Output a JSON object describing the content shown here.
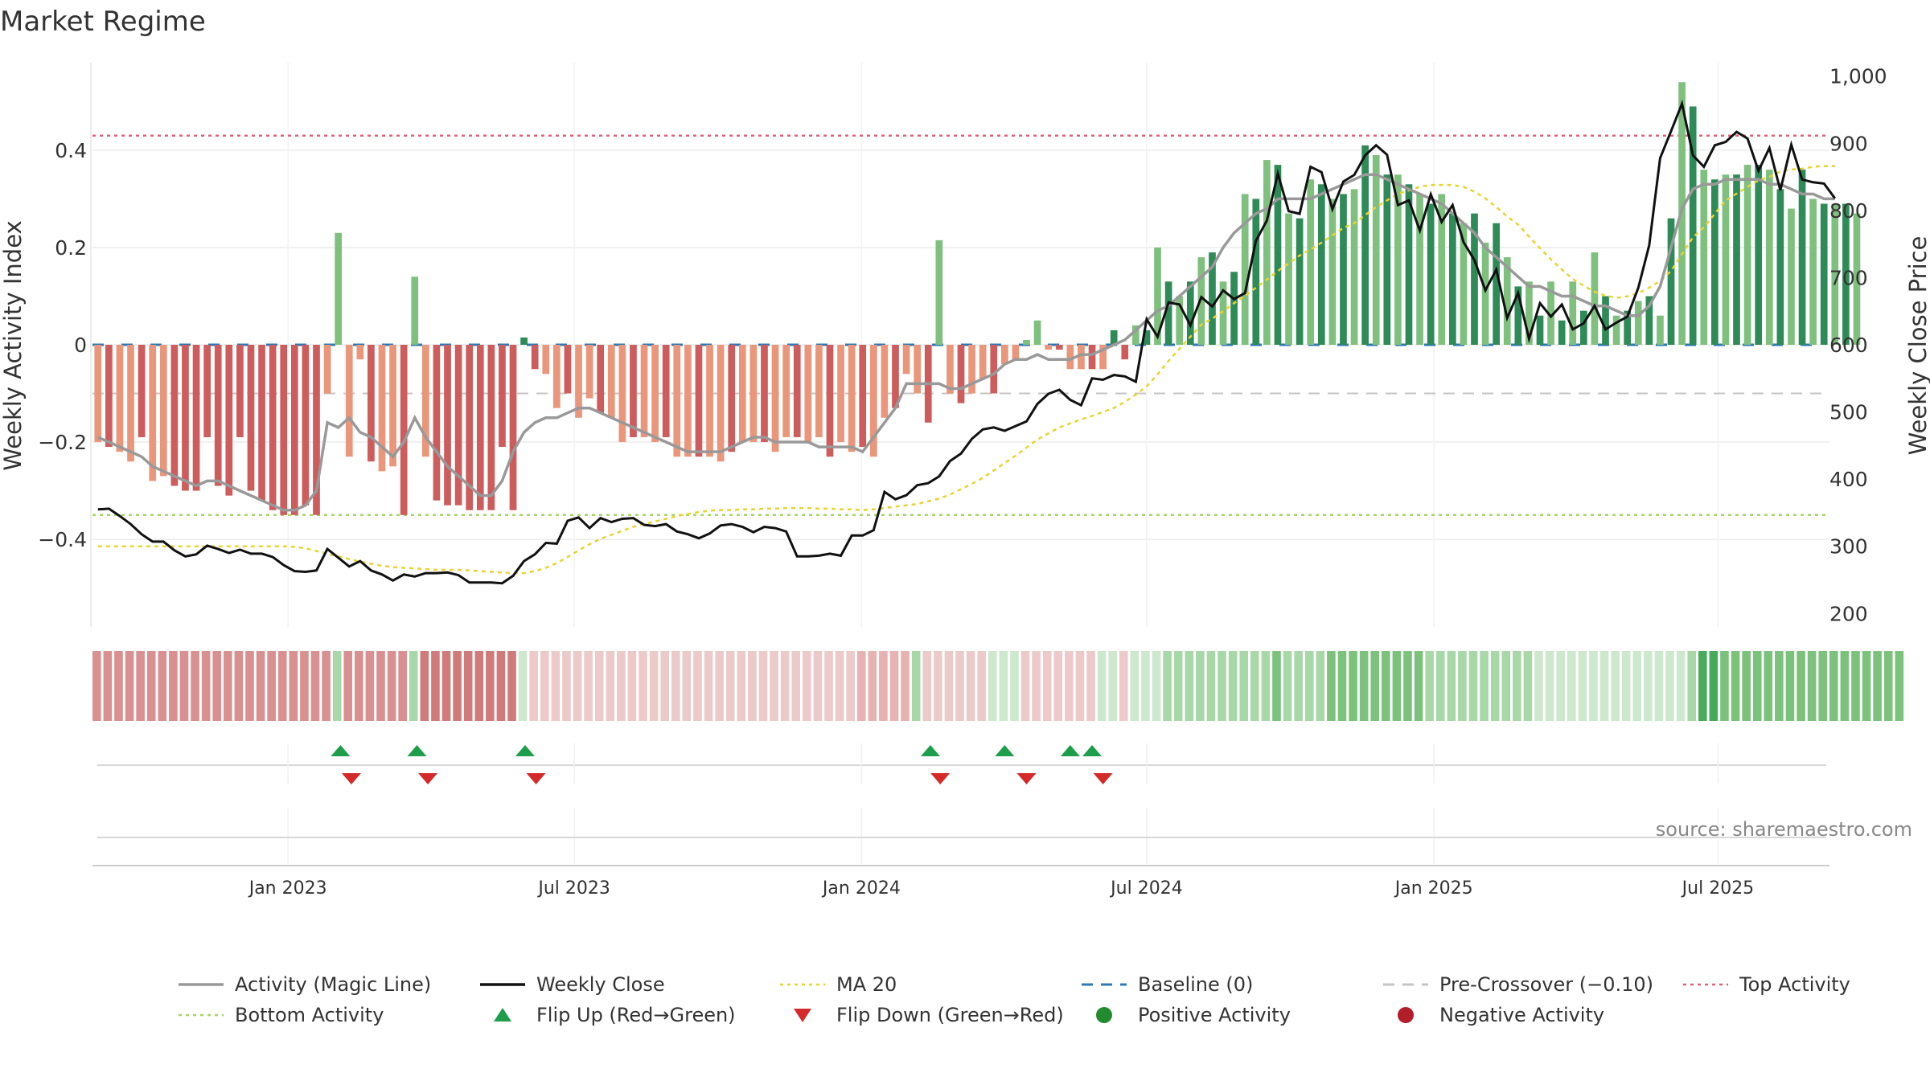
{
  "chart_data": {
    "type": "bar",
    "title": "Market Regime",
    "ylabel": "Weekly Activity Index",
    "y2label": "Weekly Close Price",
    "source": "source: sharemaestro.com",
    "ylim": [
      -0.58,
      0.58
    ],
    "y2lim": [
      180,
      1020
    ],
    "yticks": [
      "0.4",
      "0.2",
      "0",
      "−0.2",
      "−0.4"
    ],
    "yticks_values": [
      0.4,
      0.2,
      0,
      -0.2,
      -0.4
    ],
    "y2ticks": [
      "1,000",
      "900",
      "800",
      "700",
      "600",
      "500",
      "400",
      "300",
      "200"
    ],
    "y2ticks_values": [
      1000,
      900,
      800,
      700,
      600,
      500,
      400,
      300,
      200
    ],
    "xticks": [
      "Jan 2023",
      "Jul 2023",
      "Jan 2024",
      "Jul 2024",
      "Jan 2025",
      "Jul 2025"
    ],
    "xticks_week": [
      17.4,
      43.6,
      69.9,
      96.0,
      122.3,
      148.3
    ],
    "n_weeks": 159,
    "reference_lines": {
      "top_activity": 0.43,
      "bottom_activity": -0.35,
      "pre_crossover": -0.1,
      "baseline": 0
    },
    "activity": [
      -0.2,
      -0.21,
      -0.22,
      -0.24,
      -0.19,
      -0.28,
      -0.27,
      -0.29,
      -0.3,
      -0.3,
      -0.19,
      -0.29,
      -0.31,
      -0.19,
      -0.3,
      -0.32,
      -0.34,
      -0.35,
      -0.35,
      -0.33,
      -0.35,
      -0.1,
      0.23,
      -0.23,
      -0.03,
      -0.24,
      -0.26,
      -0.25,
      -0.35,
      0.14,
      -0.23,
      -0.32,
      -0.33,
      -0.33,
      -0.34,
      -0.34,
      -0.34,
      -0.21,
      -0.34,
      0.015,
      -0.05,
      -0.06,
      -0.13,
      -0.1,
      -0.15,
      -0.11,
      -0.14,
      -0.15,
      -0.2,
      -0.19,
      -0.19,
      -0.2,
      -0.19,
      -0.23,
      -0.23,
      -0.23,
      -0.23,
      -0.24,
      -0.22,
      -0.2,
      -0.2,
      -0.2,
      -0.22,
      -0.19,
      -0.19,
      -0.2,
      -0.19,
      -0.23,
      -0.2,
      -0.22,
      -0.21,
      -0.23,
      -0.15,
      -0.13,
      -0.06,
      -0.1,
      -0.16,
      0.215,
      -0.1,
      -0.12,
      -0.1,
      -0.07,
      -0.1,
      -0.04,
      -0.03,
      0.01,
      0.05,
      -0.01,
      -0.01,
      -0.05,
      -0.05,
      -0.05,
      -0.05,
      0.03,
      -0.03,
      0.04,
      0.03,
      0.2,
      0.13,
      0.1,
      0.13,
      0.18,
      0.19,
      0.13,
      0.15,
      0.31,
      0.3,
      0.38,
      0.37,
      0.27,
      0.26,
      0.34,
      0.33,
      0.3,
      0.31,
      0.32,
      0.41,
      0.39,
      0.35,
      0.35,
      0.33,
      0.31,
      0.29,
      0.31,
      0.27,
      0.25,
      0.27,
      0.21,
      0.25,
      0.18,
      0.12,
      0.13,
      0.06,
      0.13,
      0.05,
      0.13,
      0.07,
      0.19,
      0.1,
      0.06,
      0.07,
      0.09,
      0.1,
      0.06,
      0.26,
      0.54,
      0.49,
      0.36,
      0.34,
      0.35,
      0.35,
      0.37,
      0.37,
      0.36,
      0.32,
      0.28,
      0.36,
      0.3,
      0.29,
      0.29,
      0.29,
      0.27
    ],
    "magic_line": [
      -0.19,
      -0.2,
      -0.21,
      -0.22,
      -0.23,
      -0.25,
      -0.26,
      -0.27,
      -0.28,
      -0.29,
      -0.28,
      -0.28,
      -0.29,
      -0.3,
      -0.31,
      -0.32,
      -0.33,
      -0.34,
      -0.34,
      -0.33,
      -0.3,
      -0.16,
      -0.17,
      -0.15,
      -0.18,
      -0.19,
      -0.21,
      -0.23,
      -0.2,
      -0.15,
      -0.19,
      -0.22,
      -0.25,
      -0.27,
      -0.29,
      -0.31,
      -0.31,
      -0.28,
      -0.22,
      -0.18,
      -0.16,
      -0.15,
      -0.15,
      -0.14,
      -0.13,
      -0.13,
      -0.14,
      -0.15,
      -0.16,
      -0.17,
      -0.18,
      -0.19,
      -0.2,
      -0.21,
      -0.22,
      -0.22,
      -0.22,
      -0.22,
      -0.21,
      -0.2,
      -0.19,
      -0.19,
      -0.2,
      -0.2,
      -0.2,
      -0.2,
      -0.21,
      -0.21,
      -0.21,
      -0.21,
      -0.22,
      -0.19,
      -0.16,
      -0.13,
      -0.08,
      -0.08,
      -0.08,
      -0.08,
      -0.09,
      -0.09,
      -0.08,
      -0.07,
      -0.06,
      -0.04,
      -0.03,
      -0.03,
      -0.02,
      -0.03,
      -0.03,
      -0.03,
      -0.02,
      -0.02,
      -0.01,
      0.0,
      0.01,
      0.03,
      0.05,
      0.07,
      0.08,
      0.1,
      0.12,
      0.14,
      0.16,
      0.2,
      0.23,
      0.25,
      0.27,
      0.28,
      0.3,
      0.3,
      0.3,
      0.3,
      0.31,
      0.32,
      0.33,
      0.34,
      0.35,
      0.35,
      0.34,
      0.33,
      0.32,
      0.31,
      0.3,
      0.29,
      0.27,
      0.25,
      0.23,
      0.2,
      0.18,
      0.16,
      0.14,
      0.12,
      0.12,
      0.11,
      0.1,
      0.1,
      0.09,
      0.08,
      0.08,
      0.07,
      0.06,
      0.06,
      0.08,
      0.12,
      0.2,
      0.28,
      0.32,
      0.33,
      0.33,
      0.34,
      0.34,
      0.34,
      0.34,
      0.33,
      0.33,
      0.32,
      0.31,
      0.31,
      0.3,
      0.3
    ],
    "weekly_close": [
      355,
      356,
      345,
      333,
      318,
      307,
      307,
      294,
      285,
      288,
      301,
      296,
      290,
      295,
      289,
      289,
      284,
      272,
      263,
      262,
      264,
      296,
      283,
      270,
      278,
      264,
      258,
      249,
      258,
      255,
      260,
      260,
      261,
      257,
      246,
      246,
      246,
      245,
      256,
      278,
      288,
      305,
      304,
      338,
      343,
      327,
      342,
      336,
      341,
      342,
      332,
      330,
      333,
      322,
      318,
      312,
      319,
      331,
      333,
      329,
      321,
      329,
      327,
      322,
      285,
      285,
      286,
      289,
      286,
      316,
      316,
      324,
      381,
      370,
      376,
      391,
      394,
      404,
      427,
      438,
      460,
      474,
      477,
      472,
      479,
      486,
      512,
      527,
      533,
      518,
      510,
      550,
      548,
      555,
      553,
      545,
      638,
      612,
      663,
      660,
      629,
      671,
      657,
      681,
      668,
      677,
      755,
      785,
      855,
      799,
      795,
      865,
      857,
      802,
      843,
      853,
      882,
      897,
      883,
      808,
      815,
      770,
      824,
      783,
      808,
      753,
      726,
      681,
      712,
      640,
      677,
      609,
      662,
      642,
      660,
      623,
      632,
      658,
      623,
      633,
      642,
      685,
      748,
      878,
      918,
      959,
      882,
      865,
      897,
      902,
      917,
      907,
      859,
      893,
      830,
      898,
      846,
      842,
      840,
      818
    ],
    "ma20": [
      300,
      300,
      300,
      300,
      300,
      300,
      300,
      300,
      300,
      300,
      300,
      300,
      300,
      300,
      300,
      300,
      300,
      300,
      299,
      297,
      293,
      289,
      285,
      281,
      277,
      274,
      271,
      269,
      268,
      267,
      266,
      265,
      265,
      265,
      264,
      263,
      262,
      261,
      260,
      260,
      263,
      268,
      275,
      284,
      294,
      303,
      311,
      317,
      323,
      329,
      333,
      337,
      341,
      345,
      348,
      351,
      353,
      354,
      354,
      355,
      355,
      356,
      356,
      357,
      357,
      357,
      356,
      356,
      355,
      355,
      354,
      355,
      357,
      359,
      361,
      363,
      367,
      371,
      377,
      385,
      393,
      402,
      413,
      424,
      435,
      447,
      459,
      468,
      477,
      483,
      489,
      494,
      500,
      506,
      515,
      526,
      538,
      556,
      576,
      594,
      612,
      630,
      639,
      650,
      662,
      673,
      685,
      697,
      710,
      721,
      733,
      742,
      752,
      763,
      774,
      781,
      793,
      805,
      815,
      825,
      830,
      835,
      838,
      838,
      838,
      835,
      828,
      818,
      805,
      791,
      779,
      761,
      744,
      727,
      712,
      698,
      688,
      679,
      673,
      670,
      672,
      677,
      685,
      695,
      710,
      735,
      760,
      775,
      795,
      815,
      825,
      835,
      845,
      850,
      858,
      861,
      862,
      865,
      866,
      866
    ],
    "ribbon_levels": [
      -3,
      -3,
      -3,
      -3,
      -3,
      -3,
      -3,
      -3,
      -3,
      -3,
      -3,
      -3,
      -3,
      -3,
      -3,
      -3,
      -3,
      -3,
      -3,
      -3,
      -3,
      -3,
      2,
      -3,
      -3,
      -3,
      -3,
      -3,
      -3,
      2,
      -4,
      -4,
      -4,
      -4,
      -4,
      -4,
      -4,
      -4,
      -4,
      1,
      -1,
      -1,
      -1,
      -1,
      -1,
      -1,
      -1,
      -1,
      -1,
      -1,
      -1,
      -1,
      -1,
      -1,
      -1,
      -1,
      -1,
      -1,
      -1,
      -1,
      -1,
      -1,
      -1,
      -1,
      -1,
      -1,
      -1,
      -1,
      -1,
      -1,
      -2,
      -2,
      -2,
      -2,
      -2,
      2,
      -1,
      -1,
      -1,
      -1,
      -1,
      -1,
      1,
      1,
      1,
      -1,
      -1,
      -1,
      -1,
      -1,
      -1,
      -1,
      1,
      1,
      -1,
      1,
      1,
      1,
      2,
      2,
      2,
      2,
      2,
      2,
      2,
      2,
      2,
      2,
      3,
      2,
      2,
      2,
      2,
      3,
      3,
      3,
      3,
      3,
      3,
      3,
      3,
      3,
      2,
      2,
      2,
      2,
      2,
      2,
      2,
      2,
      2,
      2,
      1,
      1,
      1,
      1,
      1,
      1,
      1,
      1,
      1,
      1,
      1,
      1,
      1,
      1,
      2,
      4,
      4,
      3,
      3,
      3,
      3,
      3,
      3,
      3,
      3,
      3,
      3,
      3,
      3,
      3,
      3,
      3,
      3,
      3
    ],
    "flip_up_weeks": [
      22.2,
      29.2,
      39.1,
      76.2,
      83.0,
      89.0,
      91.0
    ],
    "flip_down_weeks": [
      23.2,
      30.2,
      40.1,
      77.1,
      85.0,
      92.0
    ],
    "legend": [
      {
        "label": "Activity (Magic Line)",
        "kind": "line",
        "color": "#999999"
      },
      {
        "label": "Weekly Close",
        "kind": "line",
        "color": "#111111"
      },
      {
        "label": "MA 20",
        "kind": "dotted",
        "color": "#e8d430"
      },
      {
        "label": "Baseline (0)",
        "kind": "dashed",
        "color": "#2f78b5"
      },
      {
        "label": "Pre-Crossover (−0.10)",
        "kind": "dashed",
        "color": "#c4c4c4"
      },
      {
        "label": "Top Activity",
        "kind": "dotted",
        "color": "#e0607a"
      },
      {
        "label": "Bottom Activity",
        "kind": "dotted",
        "color": "#a9d46a"
      },
      {
        "label": "Flip Up (Red→Green)",
        "kind": "tri-up",
        "color": "#1e9e4a"
      },
      {
        "label": "Flip Down (Green→Red)",
        "kind": "tri-down",
        "color": "#d42a2a"
      },
      {
        "label": "Positive Activity",
        "kind": "circle",
        "color": "#228b2f"
      },
      {
        "label": "Negative Activity",
        "kind": "circle",
        "color": "#b21e2a"
      }
    ],
    "colors": {
      "pos_dark": "#2e8b57",
      "pos_light": "#7fc07f",
      "neg_dark": "#cd5c5c",
      "neg_light": "#e9967a",
      "magic_line": "#999999",
      "weekly_close": "#111111",
      "ma20": "#e8d430",
      "top": "#e0607a",
      "bottom": "#a9d46a",
      "baseline": "#2f78b5",
      "precross": "#c4c4c4"
    }
  }
}
